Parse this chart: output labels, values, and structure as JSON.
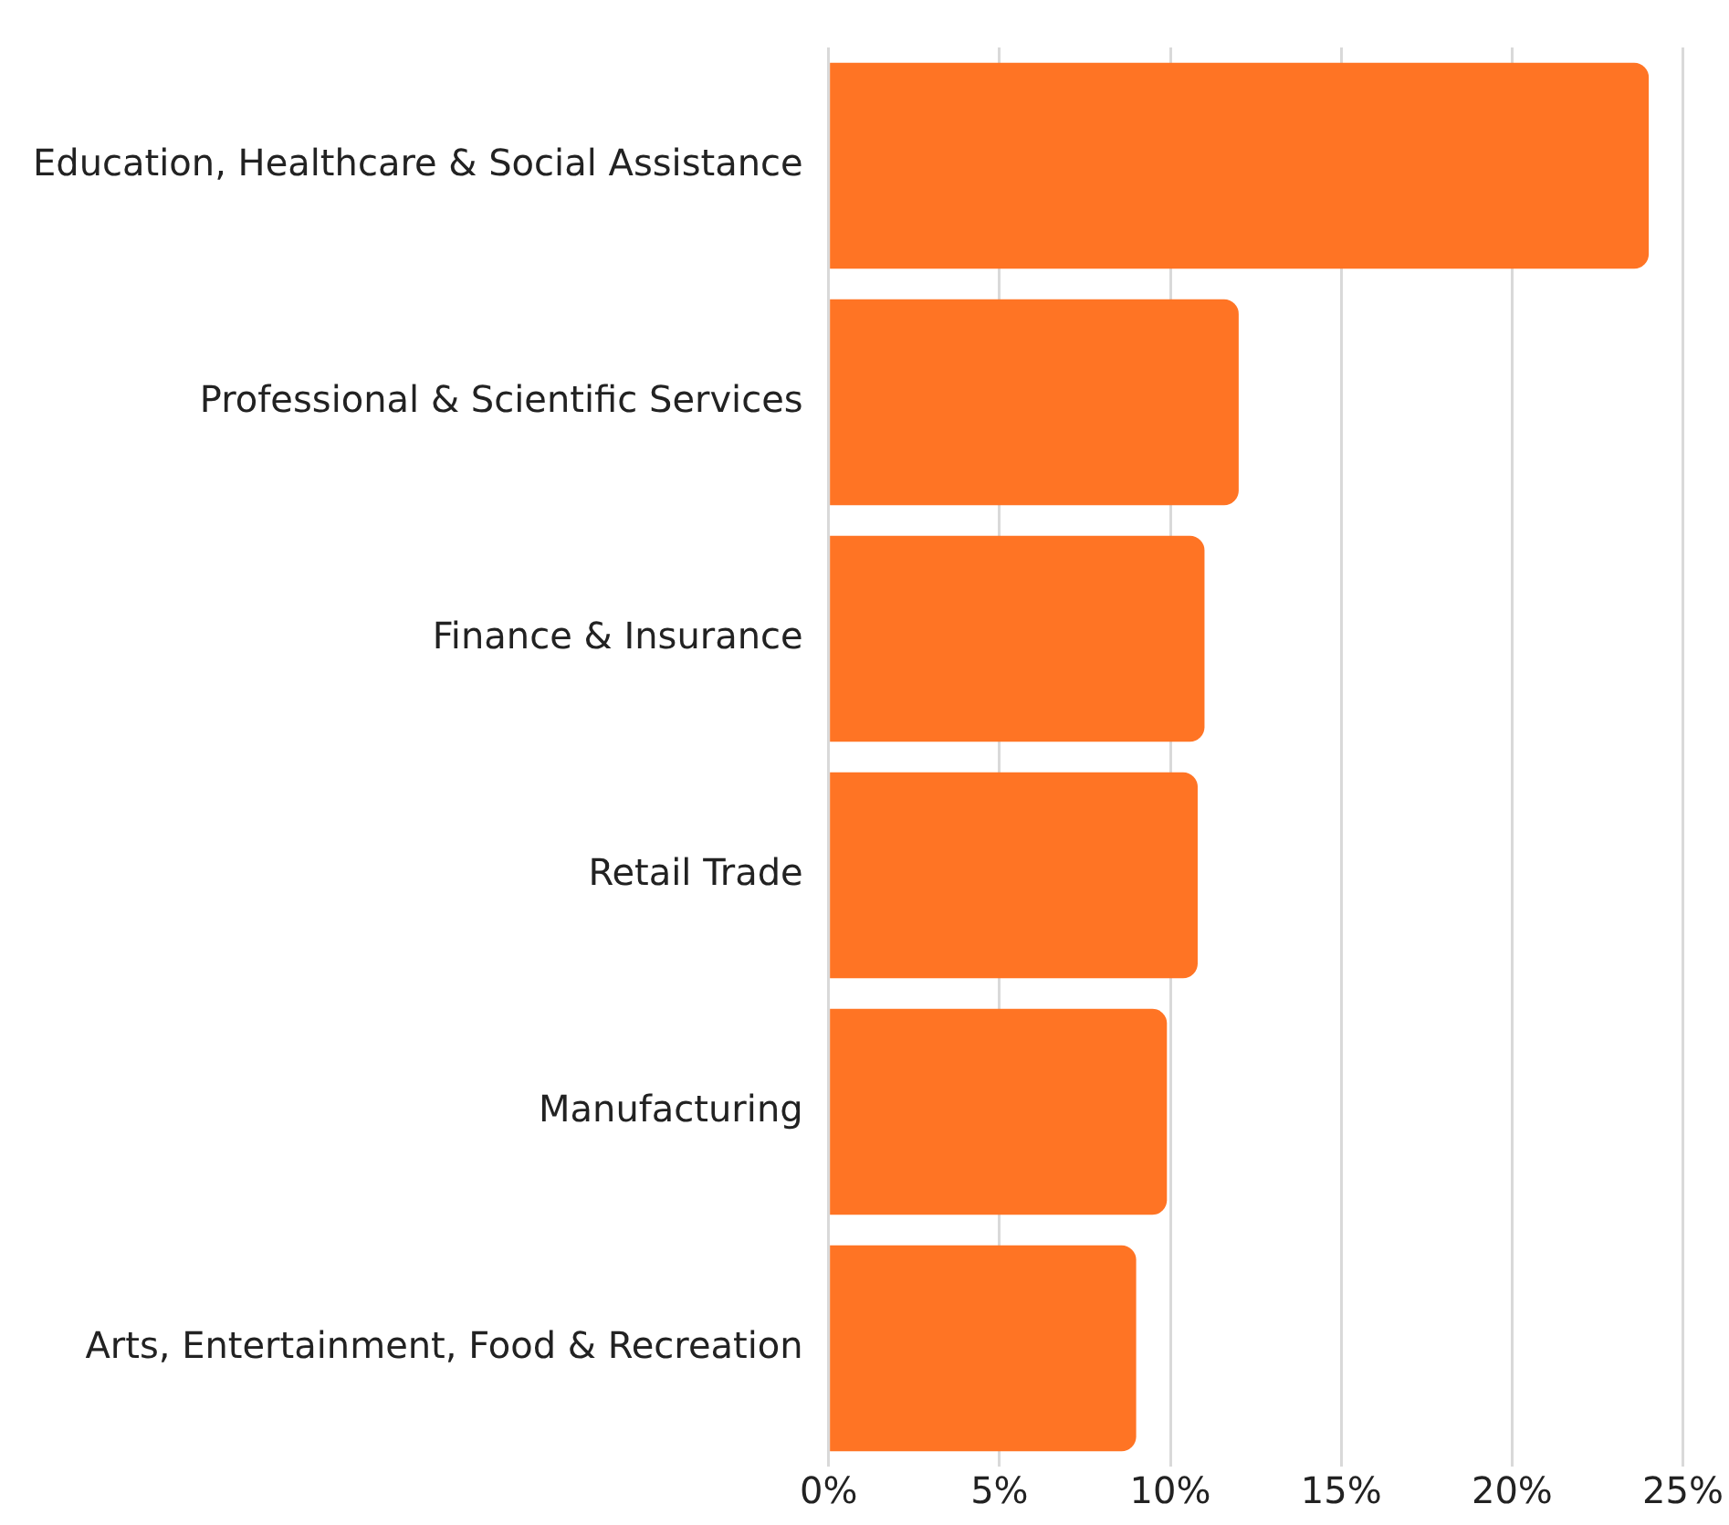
{
  "chart_data": {
    "type": "bar",
    "orientation": "horizontal",
    "categories": [
      "Education, Healthcare & Social Assistance",
      "Professional & Scientific Services",
      "Finance & Insurance",
      "Retail Trade",
      "Manufacturing",
      "Arts, Entertainment, Food & Recreation"
    ],
    "values": [
      24.0,
      12.0,
      11.0,
      10.8,
      9.9,
      9.0
    ],
    "color": "#ff7424",
    "xlim": [
      0,
      25
    ],
    "xticks": [
      {
        "value": 0,
        "label": "0%"
      },
      {
        "value": 5,
        "label": "5%"
      },
      {
        "value": 10,
        "label": "10%"
      },
      {
        "value": 15,
        "label": "15%"
      },
      {
        "value": 20,
        "label": "20%"
      },
      {
        "value": 25,
        "label": "25%"
      }
    ],
    "grid": "x",
    "legend": false
  }
}
